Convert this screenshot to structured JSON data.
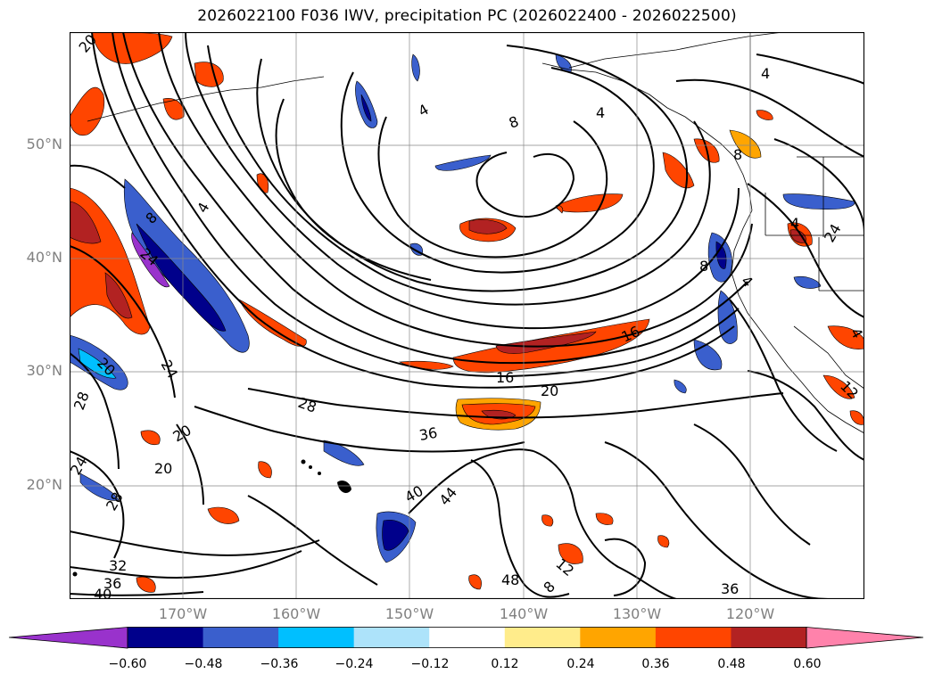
{
  "title": "2026022100 F036 IWV, precipitation PC (2026022400 - 2026022500)",
  "lat_labels": [
    "50°N",
    "40°N",
    "30°N",
    "20°N"
  ],
  "lon_labels": [
    "170°W",
    "160°W",
    "150°W",
    "140°W",
    "130°W",
    "120°W"
  ],
  "colorbar": {
    "ticks": [
      "−0.60",
      "−0.48",
      "−0.36",
      "−0.24",
      "−0.12",
      "0.12",
      "0.24",
      "0.36",
      "0.48",
      "0.60"
    ],
    "colors": [
      "#9932CC",
      "#00008B",
      "#3A5FCD",
      "#00BFFF",
      "#ADE3FA",
      "#FFFFFF",
      "#FFEC8B",
      "#FFA500",
      "#FF4500",
      "#B22222",
      "#FF82AB"
    ]
  },
  "contour_labels": [
    "20",
    "4",
    "8",
    "4",
    "8",
    "4",
    "24",
    "8",
    "4",
    "24",
    "16",
    "20",
    "16",
    "20",
    "28",
    "28",
    "24",
    "28",
    "20",
    "20",
    "36",
    "40",
    "44",
    "32",
    "36",
    "40",
    "48",
    "12",
    "8",
    "36",
    "12",
    "4",
    "24",
    "8",
    "4",
    "4"
  ]
}
